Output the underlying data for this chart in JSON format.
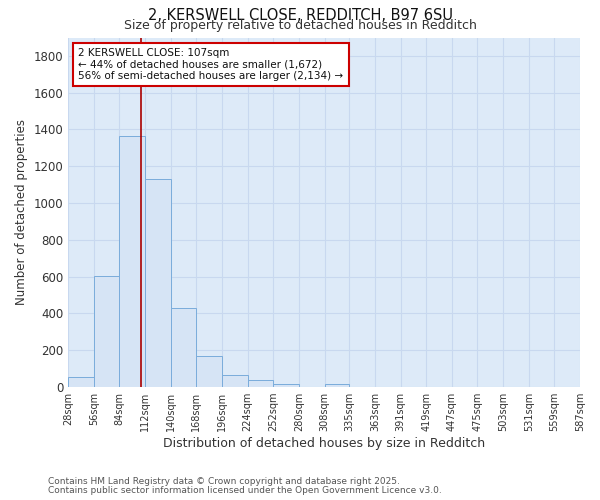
{
  "title1": "2, KERSWELL CLOSE, REDDITCH, B97 6SU",
  "title2": "Size of property relative to detached houses in Redditch",
  "xlabel": "Distribution of detached houses by size in Redditch",
  "ylabel": "Number of detached properties",
  "bin_edges": [
    28,
    56,
    84,
    112,
    140,
    168,
    196,
    224,
    252,
    280,
    308,
    335,
    363,
    391,
    419,
    447,
    475,
    503,
    531,
    559,
    587
  ],
  "bar_heights": [
    55,
    605,
    1365,
    1130,
    430,
    170,
    68,
    38,
    15,
    0,
    15,
    0,
    0,
    0,
    0,
    0,
    0,
    0,
    0,
    0
  ],
  "bar_color": "#d6e4f5",
  "bar_edge_color": "#7aacdb",
  "bg_color": "#ddeaf8",
  "plot_bg_color": "#ddeaf8",
  "grid_color": "#c8d8ef",
  "vline_x": 107,
  "vline_color": "#aa0000",
  "annotation_text": "2 KERSWELL CLOSE: 107sqm\n← 44% of detached houses are smaller (1,672)\n56% of semi-detached houses are larger (2,134) →",
  "annotation_box_color": "#ffffff",
  "annotation_box_edge": "#cc0000",
  "footnote1": "Contains HM Land Registry data © Crown copyright and database right 2025.",
  "footnote2": "Contains public sector information licensed under the Open Government Licence v3.0.",
  "ylim": [
    0,
    1900
  ],
  "yticks": [
    0,
    200,
    400,
    600,
    800,
    1000,
    1200,
    1400,
    1600,
    1800
  ]
}
